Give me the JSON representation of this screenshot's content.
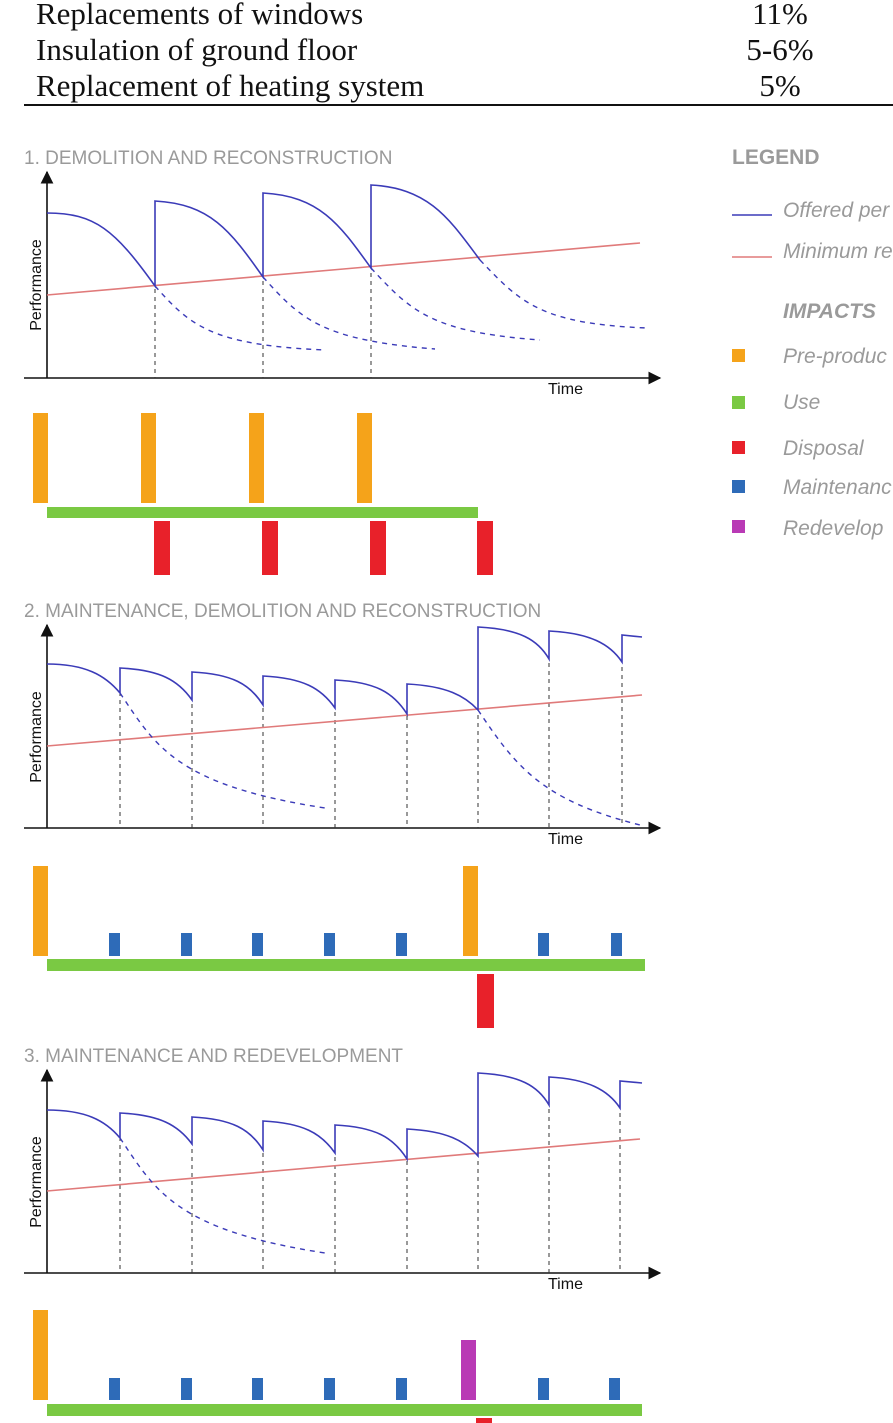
{
  "table": {
    "rows": [
      {
        "label": "Replacements of windows",
        "value": "11%"
      },
      {
        "label": "Insulation of ground floor",
        "value": "5-6%"
      },
      {
        "label": "Replacement of heating system",
        "value": "5%"
      }
    ]
  },
  "legend": {
    "title": "LEGEND",
    "lines": [
      {
        "label": "Offered per",
        "color": "#3b3bb8"
      },
      {
        "label": "Minimum re",
        "color": "#e07a7a"
      }
    ],
    "impacts_title": "IMPACTS",
    "impacts": [
      {
        "label": "Pre-produc",
        "color": "#f5a31a"
      },
      {
        "label": "Use",
        "color": "#7ac943"
      },
      {
        "label": "Disposal",
        "color": "#e8212a"
      },
      {
        "label": "Maintenanc",
        "color": "#2e6bb8"
      },
      {
        "label": "Redevelop",
        "color": "#b93ab5"
      }
    ]
  },
  "colors": {
    "offered": "#3b3bb8",
    "minimum": "#e07a7a",
    "preproduction": "#f5a31a",
    "use": "#7ac943",
    "disposal": "#e8212a",
    "maintenance": "#2e6bb8",
    "redevelopment": "#b93ab5"
  },
  "sections": [
    {
      "title": "1. DEMOLITION AND RECONSTRUCTION",
      "ylabel": "Performance",
      "xlabel": "Time"
    },
    {
      "title": "2. MAINTENANCE, DEMOLITION AND RECONSTRUCTION",
      "ylabel": "Performance",
      "xlabel": "Time"
    },
    {
      "title": "3. MAINTENANCE AND REDEVELOPMENT",
      "ylabel": "Performance",
      "xlabel": "Time"
    }
  ]
}
